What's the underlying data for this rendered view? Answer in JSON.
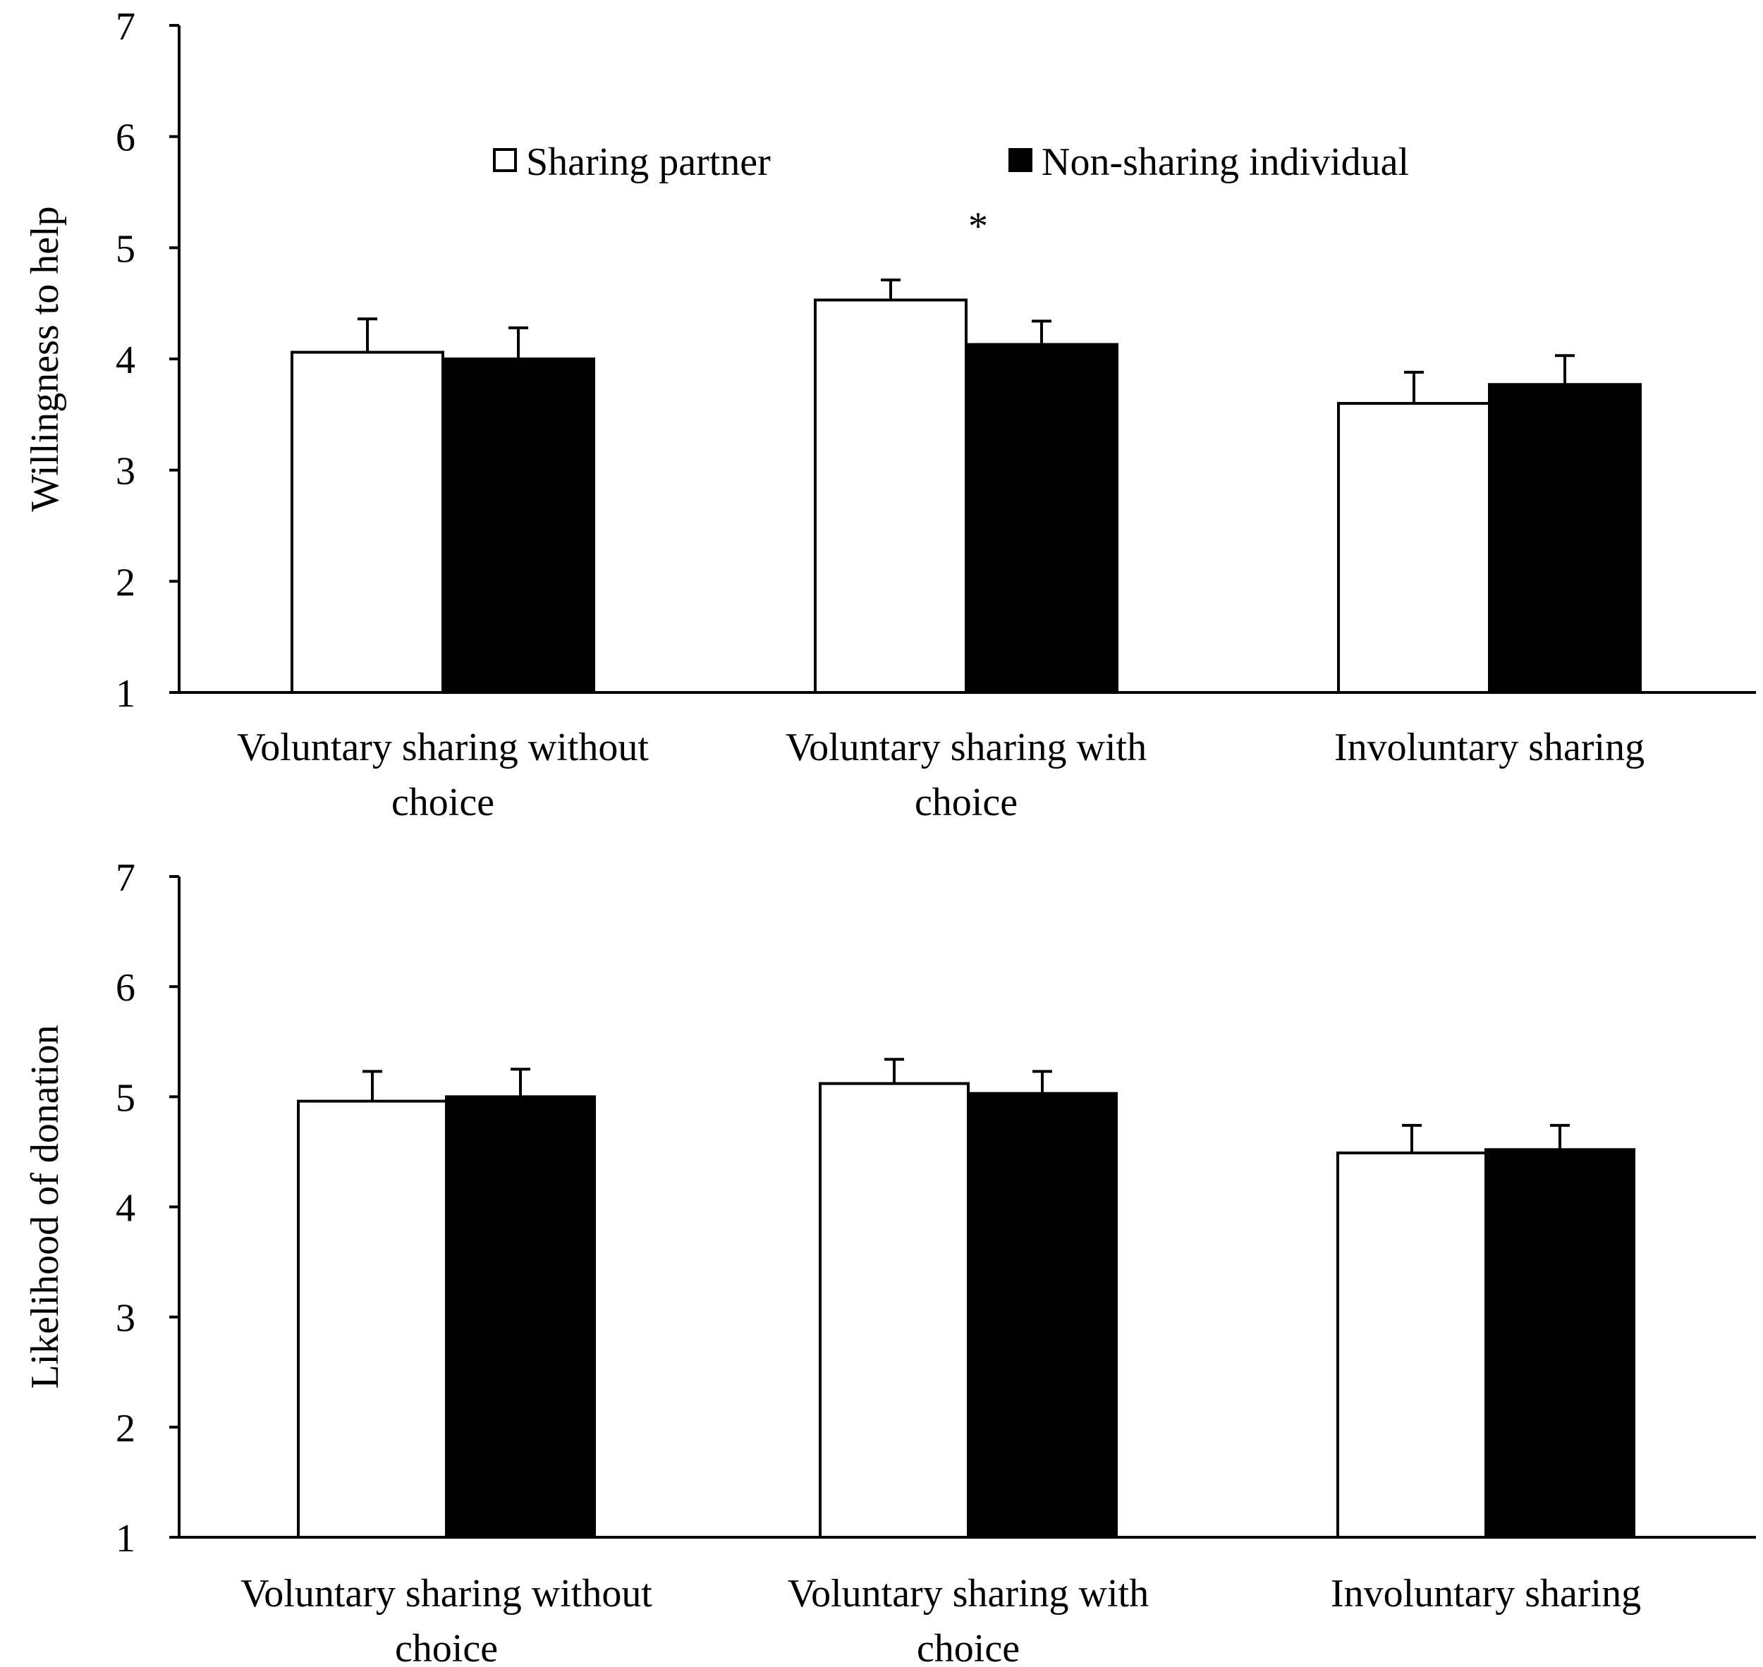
{
  "legend": [
    {
      "name": "Sharing partner",
      "color": "#ffffff"
    },
    {
      "name": "Non-sharing individual",
      "color": "#000000"
    }
  ],
  "chart_data": [
    {
      "type": "bar",
      "ylabel": "Willingness to help",
      "xlabel": "",
      "ylim": [
        1,
        7
      ],
      "yticks": [
        "1",
        "2",
        "3",
        "4",
        "5",
        "6",
        "7"
      ],
      "categories": [
        [
          "Voluntary sharing without",
          "choice"
        ],
        [
          "Voluntary sharing with",
          "choice"
        ],
        [
          "Involuntary sharing"
        ]
      ],
      "series": [
        {
          "name": "Sharing partner",
          "color": "#ffffff",
          "values": [
            4.06,
            4.53,
            3.6
          ],
          "errors": [
            0.3,
            0.18,
            0.28
          ]
        },
        {
          "name": "Non-sharing individual",
          "color": "#000000",
          "values": [
            4.0,
            4.13,
            3.77
          ],
          "errors": [
            0.28,
            0.21,
            0.26
          ]
        }
      ],
      "annotations": [
        {
          "text": "*",
          "category": 1
        }
      ]
    },
    {
      "type": "bar",
      "ylabel": "Likelihood of donation",
      "xlabel": "",
      "ylim": [
        1,
        7
      ],
      "yticks": [
        "1",
        "2",
        "3",
        "4",
        "5",
        "6",
        "7"
      ],
      "categories": [
        [
          "Voluntary sharing without",
          "choice"
        ],
        [
          "Voluntary sharing with",
          "choice"
        ],
        [
          "Involuntary sharing"
        ]
      ],
      "series": [
        {
          "name": "Sharing partner",
          "color": "#ffffff",
          "values": [
            4.96,
            5.12,
            4.49
          ],
          "errors": [
            0.27,
            0.22,
            0.25
          ]
        },
        {
          "name": "Non-sharing individual",
          "color": "#000000",
          "values": [
            5.0,
            5.03,
            4.52
          ],
          "errors": [
            0.25,
            0.2,
            0.22
          ]
        }
      ],
      "annotations": []
    }
  ]
}
